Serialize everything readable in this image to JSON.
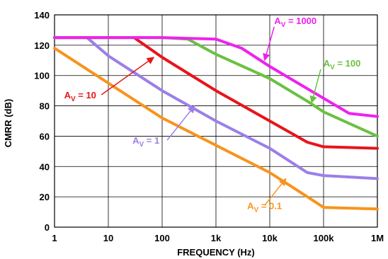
{
  "chart_data": {
    "type": "line",
    "title": "",
    "xlabel": "FREQUENCY (Hz)",
    "ylabel": "CMRR (dB)",
    "xscale": "log",
    "xlim": [
      1,
      1000000
    ],
    "ylim": [
      0,
      140
    ],
    "grid": true,
    "x_ticks": [
      {
        "value": 1,
        "label": "1"
      },
      {
        "value": 10,
        "label": "10"
      },
      {
        "value": 100,
        "label": "100"
      },
      {
        "value": 1000,
        "label": "1k"
      },
      {
        "value": 10000,
        "label": "10k"
      },
      {
        "value": 100000,
        "label": "100k"
      },
      {
        "value": 1000000,
        "label": "1M"
      }
    ],
    "y_ticks": [
      {
        "value": 0,
        "label": "0"
      },
      {
        "value": 20,
        "label": "20"
      },
      {
        "value": 40,
        "label": "40"
      },
      {
        "value": 60,
        "label": "60"
      },
      {
        "value": 80,
        "label": "80"
      },
      {
        "value": 100,
        "label": "100"
      },
      {
        "value": 120,
        "label": "120"
      },
      {
        "value": 140,
        "label": "140"
      }
    ],
    "series": [
      {
        "id": "av-0-1",
        "color": "#f7941d",
        "x": [
          1,
          10,
          100,
          1000,
          10000,
          50000,
          100000,
          1000000
        ],
        "y": [
          118,
          95,
          72,
          54,
          36,
          20,
          13,
          12
        ],
        "label": {
          "main": "A",
          "sub": "V",
          "value": " = 0.1",
          "at": [
            8000,
            12
          ],
          "arrow_to": [
            20000,
            32
          ]
        }
      },
      {
        "id": "av-1",
        "color": "#9b7fe8",
        "x": [
          1,
          4,
          10,
          100,
          1000,
          10000,
          50000,
          100000,
          1000000
        ],
        "y": [
          125,
          125,
          113,
          90,
          70,
          52,
          36,
          34,
          32
        ],
        "label": {
          "main": "A",
          "sub": "V",
          "value": " = 1",
          "at": [
            50,
            55
          ],
          "arrow_to": [
            400,
            80
          ]
        }
      },
      {
        "id": "av-10",
        "color": "#e8141b",
        "x": [
          1,
          10,
          30,
          100,
          1000,
          10000,
          50000,
          100000,
          1000000
        ],
        "y": [
          125,
          125,
          125,
          112,
          90,
          70,
          56,
          53,
          52
        ],
        "label": {
          "main": "A",
          "sub": "V",
          "value": " = 10",
          "at": [
            3,
            85
          ],
          "arrow_to": [
            70,
            112
          ]
        }
      },
      {
        "id": "av-100",
        "color": "#6ac140",
        "x": [
          1,
          10,
          100,
          300,
          1000,
          10000,
          50000,
          100000,
          1000000
        ],
        "y": [
          125,
          125,
          125,
          124,
          114,
          98,
          83,
          76,
          60
        ],
        "label": {
          "main": "A",
          "sub": "V",
          "value": " = 100",
          "at": [
            220000,
            106
          ],
          "arrow_to": [
            60000,
            82
          ]
        }
      },
      {
        "id": "av-1000",
        "color": "#ee22ee",
        "x": [
          1,
          10,
          100,
          1000,
          3000,
          10000,
          100000,
          300000,
          1000000
        ],
        "y": [
          125,
          125,
          125,
          124,
          118,
          106,
          85,
          75,
          73
        ],
        "label": {
          "main": "A",
          "sub": "V",
          "value": " = 1000",
          "at": [
            30000,
            134
          ],
          "arrow_to": [
            8000,
            110
          ]
        }
      }
    ]
  }
}
